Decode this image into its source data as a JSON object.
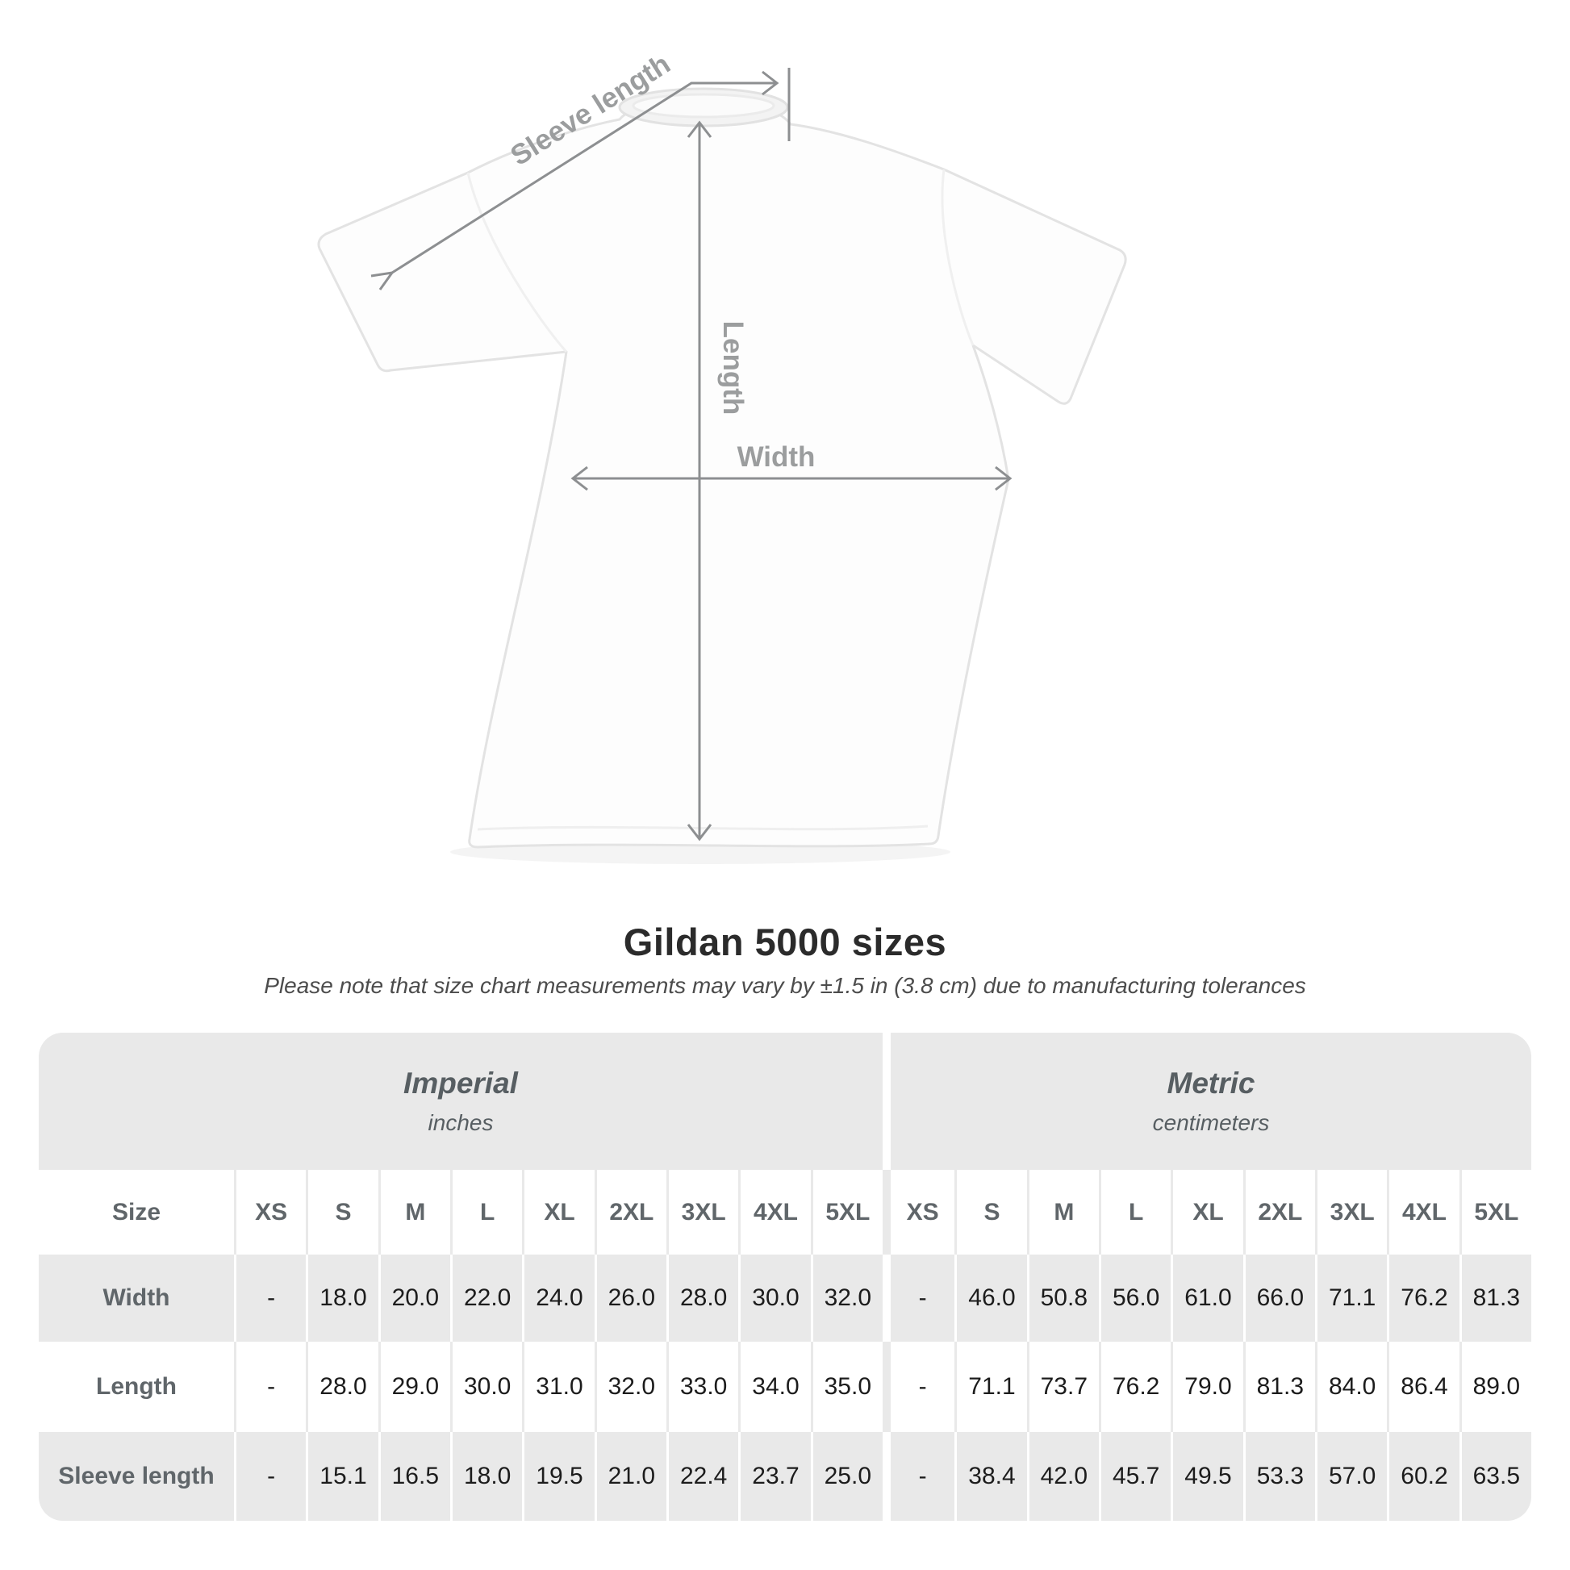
{
  "figure": {
    "labels": {
      "sleeve": "Sleeve length",
      "length": "Length",
      "width": "Width"
    },
    "line_color": "#8d8f91",
    "label_color": "#9b9d9e"
  },
  "title": "Gildan 5000 sizes",
  "subtitle": "Please note that size chart measurements may vary by ±1.5 in (3.8 cm) due to manufacturing tolerances",
  "table": {
    "groups": [
      {
        "label": "Imperial",
        "sublabel": "inches"
      },
      {
        "label": "Metric",
        "sublabel": "centimeters"
      }
    ],
    "size_header": "Size",
    "sizes": [
      "XS",
      "S",
      "M",
      "L",
      "XL",
      "2XL",
      "3XL",
      "4XL",
      "5XL"
    ],
    "rows": [
      {
        "label": "Width",
        "imperial": [
          "-",
          "18.0",
          "20.0",
          "22.0",
          "24.0",
          "26.0",
          "28.0",
          "30.0",
          "32.0"
        ],
        "metric": [
          "-",
          "46.0",
          "50.8",
          "56.0",
          "61.0",
          "66.0",
          "71.1",
          "76.2",
          "81.3"
        ]
      },
      {
        "label": "Length",
        "imperial": [
          "-",
          "28.0",
          "29.0",
          "30.0",
          "31.0",
          "32.0",
          "33.0",
          "34.0",
          "35.0"
        ],
        "metric": [
          "-",
          "71.1",
          "73.7",
          "76.2",
          "79.0",
          "81.3",
          "84.0",
          "86.4",
          "89.0"
        ]
      },
      {
        "label": "Sleeve length",
        "imperial": [
          "-",
          "15.1",
          "16.5",
          "18.0",
          "19.5",
          "21.0",
          "22.4",
          "23.7",
          "25.0"
        ],
        "metric": [
          "-",
          "38.4",
          "42.0",
          "45.7",
          "49.5",
          "53.3",
          "57.0",
          "60.2",
          "63.5"
        ]
      }
    ],
    "colors": {
      "stripe": "#e9e9e9",
      "header_text": "#60666a",
      "value_text": "#1c1c1c"
    }
  }
}
